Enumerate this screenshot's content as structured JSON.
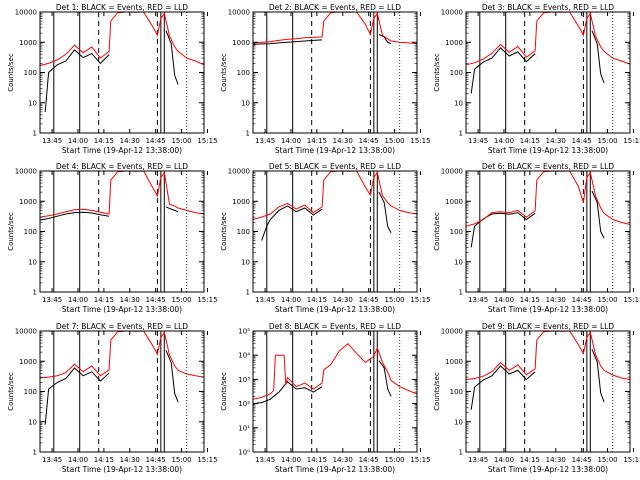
{
  "chart_data": [
    {
      "type": "line",
      "title": "Det 1: BLACK = Events, RED = LLD",
      "xlabel": "Start Time (19-Apr-12 13:38:00)",
      "ylabel": "Counts/sec",
      "yscale": "log",
      "ylim": [
        1,
        10000
      ],
      "ytick_labels": [
        "1",
        "10",
        "100",
        "1000",
        "10000"
      ],
      "xtick_labels": [
        "13:45",
        "14:00",
        "14:15",
        "14:30",
        "14:45",
        "15:00",
        "15:15"
      ],
      "series": [
        {
          "color": "#000000",
          "x": [
            3,
            5,
            10,
            15,
            20,
            25,
            30,
            35,
            40,
            41,
            50,
            70,
            73,
            76,
            78,
            80
          ],
          "y": [
            5,
            100,
            180,
            240,
            560,
            310,
            420,
            200,
            390,
            null,
            null,
            null,
            2400,
            900,
            80,
            40
          ]
        },
        {
          "color": "#ff0000",
          "x": [
            0,
            5,
            10,
            15,
            20,
            25,
            30,
            35,
            40,
            41,
            45,
            50,
            55,
            60,
            65,
            68,
            70,
            72,
            75,
            78,
            80,
            85,
            90,
            95
          ],
          "y": [
            170,
            200,
            260,
            400,
            800,
            450,
            700,
            300,
            500,
            5000,
            9500,
            10000,
            9800,
            10000,
            3500,
            1700,
            6000,
            9000,
            1600,
            700,
            500,
            300,
            240,
            180
          ]
        }
      ]
    },
    {
      "type": "line",
      "title": "Det 2: BLACK = Events, RED = LLD",
      "xlabel": "Start Time (19-Apr-12 13:38:00)",
      "ylabel": "Counts/sec",
      "yscale": "log",
      "ylim": [
        1,
        10000
      ],
      "ytick_labels": [
        "1",
        "10",
        "100",
        "1000",
        "10000"
      ],
      "xtick_labels": [
        "13:45",
        "14:00",
        "14:15",
        "14:30",
        "14:45",
        "15:00",
        "15:15"
      ],
      "series": [
        {
          "color": "#000000",
          "x": [
            0,
            5,
            10,
            15,
            20,
            25,
            30,
            35,
            40,
            41,
            50,
            70,
            73,
            76,
            78,
            80
          ],
          "y": [
            850,
            880,
            900,
            950,
            1000,
            1050,
            1100,
            1150,
            1200,
            null,
            null,
            null,
            1800,
            1500,
            1000,
            900
          ]
        },
        {
          "color": "#ff0000",
          "x": [
            0,
            5,
            10,
            15,
            20,
            25,
            30,
            35,
            40,
            41,
            45,
            50,
            55,
            60,
            65,
            68,
            70,
            72,
            75,
            78,
            80,
            85,
            90,
            95
          ],
          "y": [
            950,
            1000,
            1050,
            1150,
            1250,
            1300,
            1400,
            1450,
            1500,
            5000,
            9500,
            10000,
            9800,
            10000,
            4000,
            1800,
            6000,
            9000,
            1700,
            1300,
            1100,
            1000,
            950,
            900
          ]
        }
      ]
    },
    {
      "type": "line",
      "title": "Det 3: BLACK = Events, RED = LLD",
      "xlabel": "Start Time (19-Apr-12 13:38:00)",
      "ylabel": "Counts/sec",
      "yscale": "log",
      "ylim": [
        1,
        10000
      ],
      "ytick_labels": [
        "1",
        "10",
        "100",
        "1000",
        "10000"
      ],
      "xtick_labels": [
        "13:45",
        "14:00",
        "14:15",
        "14:30",
        "14:45",
        "15:00",
        "15:15"
      ],
      "series": [
        {
          "color": "#000000",
          "x": [
            3,
            5,
            10,
            15,
            20,
            25,
            30,
            35,
            40,
            41,
            50,
            70,
            73,
            76,
            78,
            80
          ],
          "y": [
            20,
            130,
            220,
            300,
            650,
            350,
            480,
            230,
            420,
            null,
            null,
            null,
            2400,
            900,
            90,
            45
          ]
        },
        {
          "color": "#ff0000",
          "x": [
            0,
            5,
            10,
            15,
            20,
            25,
            30,
            35,
            40,
            41,
            45,
            50,
            55,
            60,
            65,
            68,
            70,
            72,
            75,
            78,
            80,
            85,
            90,
            95
          ],
          "y": [
            180,
            210,
            280,
            430,
            850,
            470,
            720,
            320,
            520,
            5000,
            9500,
            10000,
            9800,
            10000,
            3500,
            1700,
            6000,
            9000,
            1600,
            700,
            500,
            300,
            240,
            190
          ]
        }
      ]
    },
    {
      "type": "line",
      "title": "Det 4: BLACK = Events, RED = LLD",
      "xlabel": "Start Time (19-Apr-12 13:38:00)",
      "ylabel": "Counts/sec",
      "yscale": "log",
      "ylim": [
        1,
        10000
      ],
      "ytick_labels": [
        "1",
        "10",
        "100",
        "1000",
        "10000"
      ],
      "xtick_labels": [
        "13:45",
        "14:00",
        "14:15",
        "14:30",
        "14:45",
        "15:00",
        "15:15"
      ],
      "series": [
        {
          "color": "#000000",
          "x": [
            0,
            5,
            10,
            15,
            20,
            25,
            30,
            35,
            40,
            41,
            50,
            70,
            73,
            76,
            78,
            80
          ],
          "y": [
            240,
            270,
            320,
            380,
            420,
            430,
            410,
            360,
            320,
            null,
            null,
            null,
            650,
            550,
            500,
            450
          ]
        },
        {
          "color": "#ff0000",
          "x": [
            0,
            5,
            10,
            15,
            20,
            25,
            30,
            35,
            40,
            41,
            45,
            50,
            55,
            60,
            65,
            68,
            70,
            72,
            75,
            78,
            80,
            85,
            90,
            95
          ],
          "y": [
            300,
            330,
            380,
            450,
            520,
            540,
            500,
            430,
            380,
            5000,
            9500,
            10000,
            9800,
            10000,
            3000,
            1500,
            6000,
            9000,
            800,
            700,
            600,
            500,
            420,
            380
          ]
        }
      ]
    },
    {
      "type": "line",
      "title": "Det 5: BLACK = Events, RED = LLD",
      "xlabel": "Start Time (19-Apr-12 13:38:00)",
      "ylabel": "Counts/sec",
      "yscale": "log",
      "ylim": [
        1,
        10000
      ],
      "ytick_labels": [
        "1",
        "10",
        "100",
        "1000",
        "10000"
      ],
      "xtick_labels": [
        "13:45",
        "14:00",
        "14:15",
        "14:30",
        "14:45",
        "15:00",
        "15:15"
      ],
      "series": [
        {
          "color": "#000000",
          "x": [
            5,
            8,
            10,
            15,
            20,
            25,
            30,
            35,
            40,
            41,
            50,
            70,
            73,
            76,
            78,
            80
          ],
          "y": [
            50,
            150,
            250,
            500,
            700,
            450,
            600,
            350,
            550,
            null,
            null,
            null,
            2000,
            900,
            150,
            90
          ]
        },
        {
          "color": "#ff0000",
          "x": [
            0,
            5,
            10,
            15,
            20,
            25,
            30,
            35,
            40,
            41,
            45,
            50,
            55,
            60,
            65,
            68,
            70,
            72,
            75,
            78,
            80,
            85,
            90,
            95
          ],
          "y": [
            250,
            300,
            380,
            650,
            850,
            550,
            750,
            420,
            650,
            5000,
            9500,
            10000,
            9800,
            10000,
            3000,
            1600,
            6000,
            9000,
            1500,
            900,
            700,
            500,
            420,
            380
          ]
        }
      ]
    },
    {
      "type": "line",
      "title": "Det 6: BLACK = Events, RED = LLD",
      "xlabel": "Start Time (19-Apr-12 13:38:00)",
      "ylabel": "Counts/sec",
      "yscale": "log",
      "ylim": [
        1,
        10000
      ],
      "ytick_labels": [
        "1",
        "10",
        "100",
        "1000",
        "10000"
      ],
      "xtick_labels": [
        "13:45",
        "14:00",
        "14:15",
        "14:30",
        "14:45",
        "15:00",
        "15:15"
      ],
      "series": [
        {
          "color": "#000000",
          "x": [
            3,
            5,
            10,
            15,
            20,
            25,
            30,
            35,
            40,
            41,
            50,
            70,
            73,
            76,
            78,
            80
          ],
          "y": [
            30,
            150,
            260,
            380,
            400,
            370,
            420,
            250,
            400,
            null,
            null,
            null,
            2200,
            900,
            100,
            60
          ]
        },
        {
          "color": "#ff0000",
          "x": [
            0,
            5,
            10,
            15,
            20,
            25,
            30,
            35,
            40,
            41,
            45,
            50,
            55,
            60,
            65,
            68,
            70,
            72,
            75,
            78,
            80,
            85,
            90,
            95
          ],
          "y": [
            150,
            180,
            250,
            420,
            450,
            420,
            500,
            300,
            480,
            5000,
            9500,
            10000,
            9800,
            10000,
            3200,
            900,
            6000,
            9000,
            1500,
            600,
            400,
            250,
            200,
            170
          ]
        }
      ]
    },
    {
      "type": "line",
      "title": "Det 7: BLACK = Events, RED = LLD",
      "xlabel": "Start Time (19-Apr-12 13:38:00)",
      "ylabel": "Counts/sec",
      "yscale": "log",
      "ylim": [
        1,
        10000
      ],
      "ytick_labels": [
        "1",
        "10",
        "100",
        "1000",
        "10000"
      ],
      "xtick_labels": [
        "13:45",
        "14:00",
        "14:15",
        "14:30",
        "14:45",
        "15:00",
        "15:15"
      ],
      "series": [
        {
          "color": "#000000",
          "x": [
            3,
            5,
            10,
            15,
            20,
            25,
            30,
            35,
            40,
            41,
            50,
            70,
            73,
            76,
            78,
            80
          ],
          "y": [
            8,
            120,
            200,
            270,
            600,
            330,
            450,
            220,
            410,
            null,
            null,
            null,
            2300,
            900,
            85,
            45
          ]
        },
        {
          "color": "#ff0000",
          "x": [
            0,
            5,
            10,
            15,
            20,
            25,
            30,
            35,
            40,
            41,
            45,
            50,
            55,
            60,
            65,
            68,
            70,
            72,
            75,
            78,
            80,
            85,
            90,
            95
          ],
          "y": [
            280,
            300,
            330,
            420,
            800,
            450,
            700,
            330,
            520,
            5000,
            9500,
            10000,
            9800,
            10000,
            3500,
            1700,
            6000,
            9000,
            1600,
            700,
            500,
            380,
            330,
            300
          ]
        }
      ]
    },
    {
      "type": "line",
      "title": "Det 8: BLACK = Events, RED = LLD",
      "xlabel": "Start Time (19-Apr-12 13:38:00)",
      "ylabel": "Counts/sec",
      "yscale": "log",
      "ylim": [
        1,
        100000
      ],
      "ytick_labels": [
        "10⁰",
        "10¹",
        "10²",
        "10³",
        "10⁴",
        "10⁵"
      ],
      "xtick_labels": [
        "13:45",
        "14:00",
        "14:15",
        "14:30",
        "14:45",
        "15:00",
        "15:15"
      ],
      "series": [
        {
          "color": "#000000",
          "x": [
            0,
            5,
            10,
            12,
            15,
            20,
            25,
            30,
            35,
            40,
            41,
            50,
            70,
            73,
            76,
            78,
            80
          ],
          "y": [
            100,
            110,
            150,
            200,
            300,
            800,
            400,
            450,
            300,
            500,
            null,
            null,
            null,
            6000,
            3000,
            400,
            200
          ]
        },
        {
          "color": "#ff0000",
          "x": [
            0,
            5,
            10,
            12,
            13,
            18,
            19,
            20,
            25,
            30,
            35,
            40,
            41,
            45,
            50,
            55,
            60,
            65,
            70,
            72,
            75,
            78,
            80,
            85,
            90,
            95
          ],
          "y": [
            150,
            180,
            250,
            350,
            10000,
            10000,
            600,
            1200,
            500,
            700,
            400,
            700,
            2500,
            4000,
            15000,
            30000,
            12000,
            5000,
            9000,
            20000,
            5000,
            2000,
            900,
            500,
            350,
            250
          ]
        }
      ]
    },
    {
      "type": "line",
      "title": "Det 9: BLACK = Events, RED = LLD",
      "xlabel": "Start Time (19-Apr-12 13:38:00)",
      "ylabel": "Counts/sec",
      "yscale": "log",
      "ylim": [
        1,
        10000
      ],
      "ytick_labels": [
        "1",
        "10",
        "100",
        "1000",
        "10000"
      ],
      "xtick_labels": [
        "13:45",
        "14:00",
        "14:15",
        "14:30",
        "14:45",
        "15:00",
        "15:15"
      ],
      "series": [
        {
          "color": "#000000",
          "x": [
            3,
            5,
            10,
            15,
            20,
            25,
            30,
            35,
            40,
            41,
            50,
            70,
            73,
            76,
            78,
            80
          ],
          "y": [
            25,
            140,
            240,
            330,
            700,
            380,
            500,
            250,
            450,
            null,
            null,
            null,
            2500,
            950,
            90,
            45
          ]
        },
        {
          "color": "#ff0000",
          "x": [
            0,
            5,
            10,
            15,
            20,
            25,
            30,
            35,
            40,
            41,
            45,
            50,
            55,
            60,
            65,
            68,
            70,
            72,
            75,
            78,
            80,
            85,
            90,
            95
          ],
          "y": [
            250,
            270,
            320,
            450,
            900,
            500,
            760,
            360,
            560,
            5000,
            9500,
            10000,
            9800,
            10000,
            3600,
            1800,
            6000,
            9000,
            1700,
            700,
            500,
            350,
            280,
            250
          ]
        }
      ]
    }
  ]
}
